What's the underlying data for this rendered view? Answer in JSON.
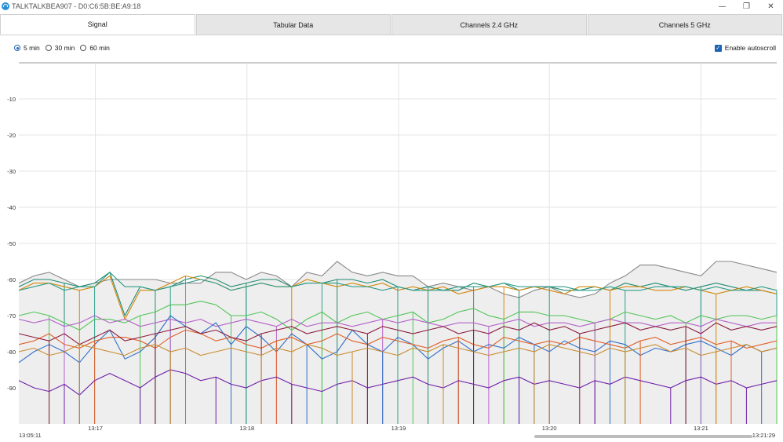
{
  "window": {
    "title": "TALKTALKBEA907 - D0:C6:5B:BE:A9:18",
    "minimize_glyph": "—",
    "maximize_glyph": "❐",
    "close_glyph": "✕"
  },
  "tabs": [
    {
      "label": "Signal",
      "active": true
    },
    {
      "label": "Tabular Data",
      "active": false
    },
    {
      "label": "Channels 2.4 GHz",
      "active": false
    },
    {
      "label": "Channels 5 GHz",
      "active": false
    }
  ],
  "time_range": {
    "options": [
      "5 min",
      "30 min",
      "60 min"
    ],
    "selected": "5 min"
  },
  "autoscroll": {
    "label": "Enable autoscroll",
    "checked": true,
    "check_glyph": "✓"
  },
  "chart_data": {
    "type": "line",
    "ylim": [
      -100,
      0
    ],
    "y_ticks": [
      -10,
      -20,
      -30,
      -40,
      -50,
      -60,
      -70,
      -80,
      -90
    ],
    "y_tick_labels": [
      "-10",
      "-20",
      "-30",
      "-40",
      "-50",
      "-60",
      "-70",
      "-80",
      "-90"
    ],
    "x_tick_labels": [
      "13:17",
      "13:18",
      "13:19",
      "13:20",
      "13:21"
    ],
    "x_range_labels": {
      "start": "13:05:11",
      "end": "13:21:29"
    },
    "grid": true,
    "x_points": 51,
    "series": [
      {
        "color": "#888888",
        "fill": true,
        "values": [
          -61,
          -59,
          -58,
          -60,
          -62,
          -61,
          -60,
          -60,
          -60,
          -60,
          -61,
          -61,
          -61,
          -58,
          -58,
          -60,
          -58,
          -59,
          -62,
          -58,
          -59,
          -55,
          -58,
          -59,
          -58,
          -59,
          -59,
          -62,
          -61,
          -62,
          -63,
          -62,
          -64,
          -65,
          -63,
          -62,
          -64,
          -65,
          -64,
          -61,
          -59,
          -56,
          -56,
          -57,
          -58,
          -59,
          -55,
          -55,
          -56,
          -57,
          -58
        ]
      },
      {
        "color": "#1f8a70",
        "values": [
          -62,
          -60,
          -60,
          -61,
          -62,
          -61,
          -58,
          -70,
          -62,
          -63,
          -62,
          -60,
          -59,
          -60,
          -62,
          -61,
          -60,
          -60,
          -62,
          -61,
          -61,
          -60,
          -60,
          -61,
          -60,
          -62,
          -63,
          -62,
          -63,
          -63,
          -61,
          -62,
          -61,
          -63,
          -62,
          -62,
          -63,
          -63,
          -62,
          -63,
          -61,
          -62,
          -61,
          -62,
          -63,
          -62,
          -61,
          -62,
          -63,
          -63,
          -64
        ]
      },
      {
        "color": "#d4870a",
        "values": [
          -63,
          -61,
          -61,
          -62,
          -63,
          -62,
          -59,
          -71,
          -63,
          -63,
          -61,
          -59,
          -60,
          -61,
          -63,
          -62,
          -61,
          -62,
          -62,
          -60,
          -61,
          -62,
          -61,
          -62,
          -61,
          -63,
          -62,
          -63,
          -62,
          -64,
          -63,
          -62,
          -62,
          -63,
          -62,
          -63,
          -64,
          -62,
          -62,
          -63,
          -62,
          -62,
          -63,
          -63,
          -62,
          -63,
          -64,
          -63,
          -62,
          -63,
          -64
        ]
      },
      {
        "color": "#2e9d8a",
        "values": [
          -63,
          -62,
          -61,
          -63,
          -62,
          -62,
          -58,
          -62,
          -62,
          -63,
          -62,
          -61,
          -60,
          -61,
          -63,
          -62,
          -61,
          -62,
          -62,
          -61,
          -61,
          -61,
          -62,
          -62,
          -63,
          -62,
          -63,
          -63,
          -63,
          -62,
          -62,
          -62,
          -61,
          -62,
          -62,
          -62,
          -62,
          -63,
          -63,
          -62,
          -63,
          -63,
          -62,
          -62,
          -62,
          -63,
          -62,
          -63,
          -63,
          -62,
          -63
        ]
      },
      {
        "color": "#4fc456",
        "values": [
          -70,
          -69,
          -70,
          -72,
          -74,
          -71,
          -71,
          -72,
          -70,
          -69,
          -67,
          -67,
          -66,
          -67,
          -70,
          -70,
          -69,
          -71,
          -74,
          -71,
          -69,
          -72,
          -70,
          -69,
          -71,
          -70,
          -69,
          -72,
          -71,
          -69,
          -68,
          -70,
          -71,
          -69,
          -69,
          -70,
          -70,
          -71,
          -72,
          -71,
          -69,
          -70,
          -71,
          -70,
          -72,
          -70,
          -71,
          -70,
          -70,
          -71,
          -70
        ]
      },
      {
        "color": "#b461c9",
        "values": [
          -71,
          -72,
          -71,
          -73,
          -72,
          -70,
          -72,
          -71,
          -73,
          -72,
          -71,
          -72,
          -71,
          -73,
          -72,
          -71,
          -72,
          -73,
          -71,
          -73,
          -72,
          -72,
          -73,
          -72,
          -71,
          -72,
          -71,
          -72,
          -73,
          -72,
          -72,
          -73,
          -72,
          -71,
          -73,
          -72,
          -72,
          -73,
          -72,
          -71,
          -72,
          -72,
          -73,
          -72,
          -72,
          -73,
          -71,
          -72,
          -73,
          -72,
          -72
        ]
      },
      {
        "color": "#2f6fc8",
        "values": [
          -83,
          -80,
          -78,
          -80,
          -83,
          -78,
          -74,
          -82,
          -80,
          -76,
          -70,
          -73,
          -75,
          -72,
          -78,
          -73,
          -76,
          -80,
          -75,
          -78,
          -82,
          -80,
          -74,
          -78,
          -80,
          -76,
          -78,
          -82,
          -79,
          -77,
          -80,
          -78,
          -79,
          -76,
          -78,
          -80,
          -77,
          -79,
          -80,
          -77,
          -78,
          -81,
          -79,
          -80,
          -78,
          -77,
          -79,
          -81,
          -78,
          -80,
          -79
        ]
      },
      {
        "color": "#e0602a",
        "values": [
          -78,
          -77,
          -75,
          -78,
          -79,
          -77,
          -76,
          -76,
          -77,
          -79,
          -76,
          -74,
          -75,
          -77,
          -76,
          -78,
          -79,
          -77,
          -76,
          -78,
          -77,
          -75,
          -77,
          -78,
          -76,
          -77,
          -78,
          -79,
          -77,
          -76,
          -78,
          -79,
          -76,
          -77,
          -78,
          -77,
          -78,
          -76,
          -77,
          -78,
          -79,
          -77,
          -76,
          -78,
          -77,
          -76,
          -78,
          -77,
          -79,
          -78,
          -77
        ]
      },
      {
        "color": "#8b1a3b",
        "values": [
          -75,
          -76,
          -77,
          -75,
          -78,
          -76,
          -74,
          -77,
          -76,
          -75,
          -74,
          -73,
          -75,
          -74,
          -76,
          -77,
          -75,
          -74,
          -73,
          -75,
          -74,
          -73,
          -74,
          -75,
          -73,
          -74,
          -75,
          -74,
          -73,
          -75,
          -74,
          -75,
          -73,
          -74,
          -72,
          -74,
          -73,
          -75,
          -74,
          -73,
          -72,
          -74,
          -73,
          -74,
          -73,
          -75,
          -72,
          -74,
          -73,
          -74,
          -73
        ]
      },
      {
        "color": "#6f1ea8",
        "values": [
          -88,
          -90,
          -91,
          -89,
          -92,
          -88,
          -86,
          -88,
          -90,
          -87,
          -85,
          -86,
          -88,
          -87,
          -89,
          -90,
          -88,
          -87,
          -89,
          -90,
          -91,
          -89,
          -88,
          -90,
          -89,
          -88,
          -87,
          -89,
          -90,
          -88,
          -89,
          -90,
          -88,
          -87,
          -89,
          -88,
          -89,
          -90,
          -88,
          -89,
          -87,
          -88,
          -89,
          -90,
          -88,
          -87,
          -89,
          -88,
          -90,
          -89,
          -88
        ]
      },
      {
        "color": "#c98a2a",
        "values": [
          -80,
          -79,
          -81,
          -80,
          -78,
          -79,
          -80,
          -81,
          -79,
          -78,
          -80,
          -79,
          -81,
          -80,
          -79,
          -80,
          -81,
          -79,
          -80,
          -78,
          -79,
          -81,
          -80,
          -79,
          -80,
          -81,
          -79,
          -80,
          -78,
          -79,
          -80,
          -81,
          -80,
          -79,
          -80,
          -78,
          -79,
          -80,
          -81,
          -79,
          -80,
          -79,
          -78,
          -80,
          -79,
          -81,
          -80,
          -79,
          -78,
          -80,
          -79
        ]
      }
    ]
  },
  "scrollbar": {
    "position": 0.7
  }
}
